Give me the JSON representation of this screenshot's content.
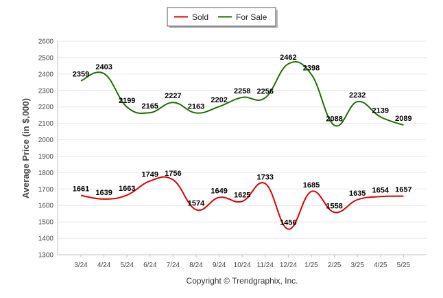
{
  "chart_data": {
    "type": "line",
    "categories": [
      "3/24",
      "4/24",
      "5/24",
      "6/24",
      "7/24",
      "8/24",
      "9/24",
      "10/24",
      "11/24",
      "12/24",
      "1/25",
      "2/25",
      "3/25",
      "4/25",
      "5/25"
    ],
    "series": [
      {
        "name": "Sold",
        "color": "#e00000",
        "values": [
          1661,
          1639,
          1663,
          1749,
          1756,
          1574,
          1649,
          1625,
          1733,
          1456,
          1685,
          1558,
          1635,
          1654,
          1657
        ]
      },
      {
        "name": "For Sale",
        "color": "#1e6e00",
        "values": [
          2359,
          2403,
          2199,
          2165,
          2227,
          2163,
          2202,
          2258,
          2256,
          2462,
          2398,
          2088,
          2232,
          2139,
          2089
        ]
      }
    ],
    "xlabel": "Copyright © Trendgraphix, Inc.",
    "ylabel": "Average Price (in $,000)",
    "ylim": [
      1300,
      2600
    ],
    "yticks": [
      1300,
      1400,
      1500,
      1600,
      1700,
      1800,
      1900,
      2000,
      2100,
      2200,
      2300,
      2400,
      2500,
      2600
    ],
    "grid": true,
    "legend_position": "top-center"
  }
}
